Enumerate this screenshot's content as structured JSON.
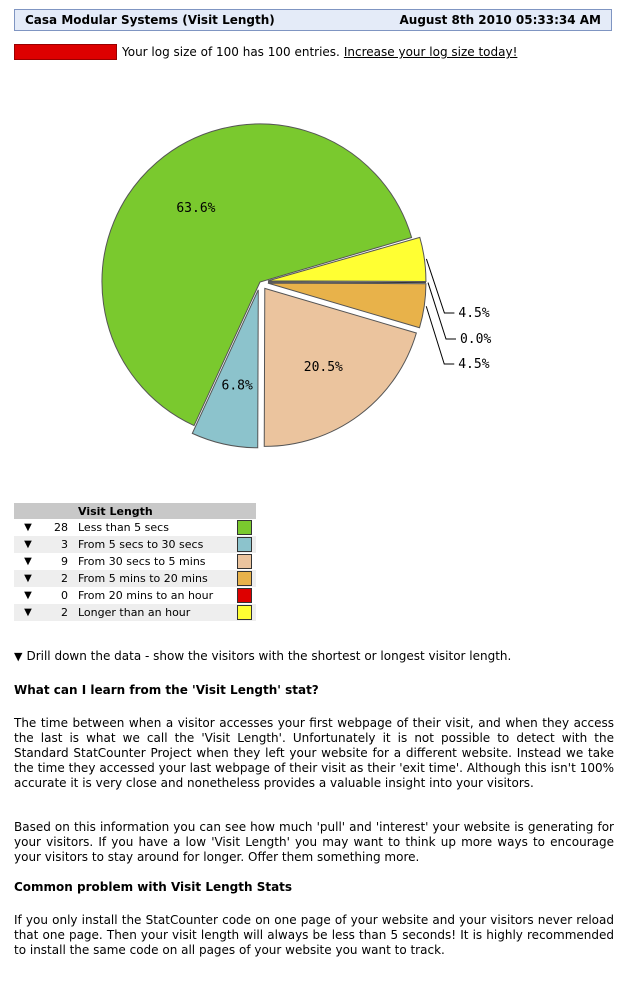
{
  "header": {
    "title": "Casa Modular Systems (Visit Length)",
    "datetime": "August 8th 2010 05:33:34 AM"
  },
  "log": {
    "text": "Your log size of 100 has 100 entries.",
    "link": "Increase your log size today!",
    "fill_fraction": 1.0
  },
  "chart_data": {
    "type": "pie",
    "title": "",
    "slices": [
      {
        "label": "Less than 5 secs",
        "value": 63.6,
        "display": "63.6%",
        "color": "#7ac92e"
      },
      {
        "label": "From 5 secs to 30 secs",
        "value": 6.8,
        "display": "6.8%",
        "color": "#8cc3cc"
      },
      {
        "label": "From 30 secs to 5 mins",
        "value": 20.5,
        "display": "20.5%",
        "color": "#ebc49e"
      },
      {
        "label": "From 5 mins to 20 mins",
        "value": 4.5,
        "display": "4.5%",
        "color": "#e8b24a"
      },
      {
        "label": "From 20 mins to an hour",
        "value": 0.0,
        "display": "0.0%",
        "color": "#dd0000"
      },
      {
        "label": "Longer than an hour",
        "value": 4.5,
        "display": "4.5%",
        "color": "#ffff33"
      }
    ]
  },
  "legend": {
    "header": "Visit Length",
    "rows": [
      {
        "count": "28",
        "label": "Less than 5 secs",
        "color": "#7ac92e"
      },
      {
        "count": "3",
        "label": "From 5 secs to 30 secs",
        "color": "#8cc3cc"
      },
      {
        "count": "9",
        "label": "From 30 secs to 5 mins",
        "color": "#ebc49e"
      },
      {
        "count": "2",
        "label": "From 5 mins to 20 mins",
        "color": "#e8b24a"
      },
      {
        "count": "0",
        "label": "From 20 mins to an hour",
        "color": "#dd0000"
      },
      {
        "count": "2",
        "label": "Longer than an hour",
        "color": "#ffff33"
      }
    ]
  },
  "drill": {
    "text": "Drill down the data - show the visitors with the shortest or longest visitor length."
  },
  "sections": {
    "learn_title": "What can I learn from the 'Visit Length' stat?",
    "learn_p1": "The time between when a visitor accesses your first webpage of their visit, and when they access the last is what we call the 'Visit Length'. Unfortunately it is not possible to detect with the Standard StatCounter Project when they left your website for a different website. Instead we take the time they accessed your last webpage of their visit as their 'exit time'. Although this isn't 100% accurate it is very close and nonetheless provides a valuable insight into your visitors.",
    "learn_p2": "Based on this information you can see how much 'pull' and 'interest' your website is generating for your visitors. If you have a low 'Visit Length' you may want to think up more ways to encourage your visitors to stay around for longer. Offer them something more.",
    "problem_title": "Common problem with Visit Length Stats",
    "problem_p1": "If you only install the StatCounter code on one page of your website and your visitors never reload that one page. Then your visit length will always be less than 5 seconds! It is highly recommended to install the same code on all pages of your website you want to track."
  }
}
